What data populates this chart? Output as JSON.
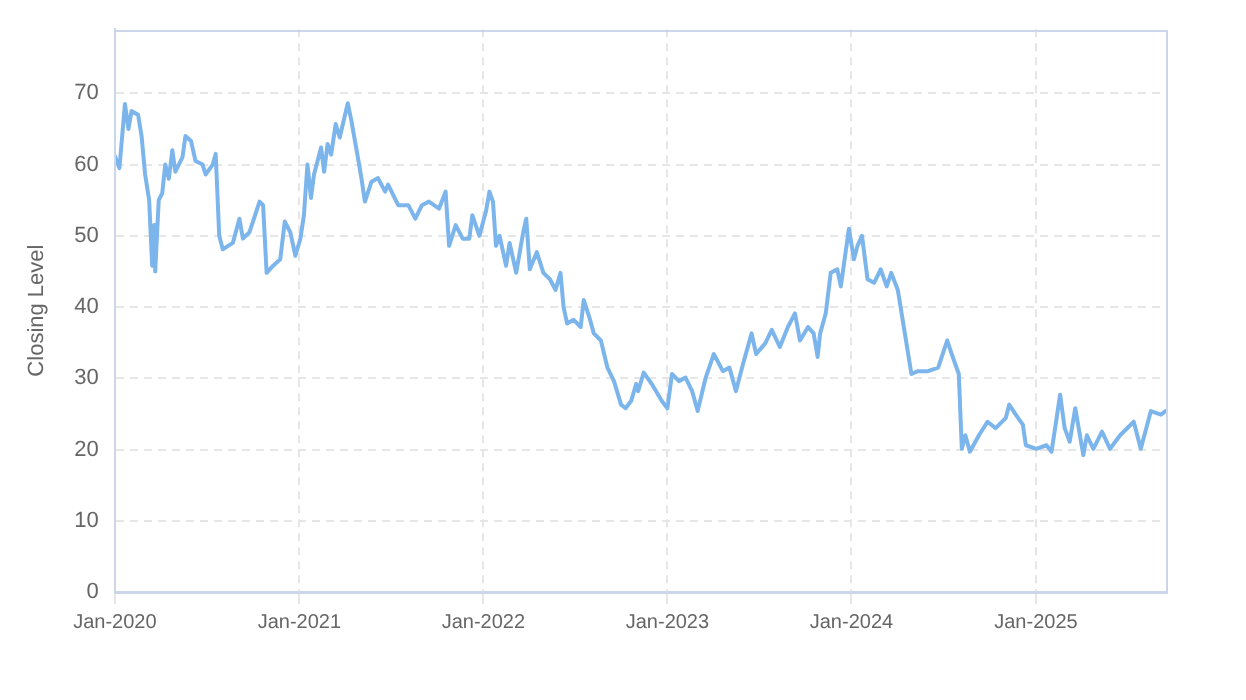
{
  "chart_data": {
    "type": "line",
    "ylabel": "Closing Level",
    "ylim": [
      0,
      79
    ],
    "yticks": [
      0,
      10,
      20,
      30,
      40,
      50,
      60,
      70
    ],
    "xlim": [
      "2020-01-01",
      "2025-09-16"
    ],
    "xticks": [
      {
        "value": "2020-01-01",
        "label": "Jan-2020"
      },
      {
        "value": "2021-01-01",
        "label": "Jan-2021"
      },
      {
        "value": "2022-01-01",
        "label": "Jan-2022"
      },
      {
        "value": "2023-01-01",
        "label": "Jan-2023"
      },
      {
        "value": "2024-01-01",
        "label": "Jan-2024"
      },
      {
        "value": "2025-01-01",
        "label": "Jan-2025"
      }
    ],
    "grid": true,
    "legend": false,
    "marker": "none",
    "series": [
      {
        "color": "#7cb5ec",
        "x": [
          "2020-01-01",
          "2020-01-10",
          "2020-01-21",
          "2020-01-28",
          "2020-02-03",
          "2020-02-16",
          "2020-02-23",
          "2020-03-01",
          "2020-03-09",
          "2020-03-15",
          "2020-03-19",
          "2020-03-21",
          "2020-03-28",
          "2020-04-04",
          "2020-04-10",
          "2020-04-17",
          "2020-04-24",
          "2020-04-30",
          "2020-05-14",
          "2020-05-20",
          "2020-05-31",
          "2020-06-09",
          "2020-06-23",
          "2020-06-29",
          "2020-07-13",
          "2020-07-19",
          "2020-07-26",
          "2020-08-02",
          "2020-08-22",
          "2020-09-04",
          "2020-09-11",
          "2020-09-24",
          "2020-10-14",
          "2020-10-21",
          "2020-10-28",
          "2020-11-10",
          "2020-11-24",
          "2020-12-03",
          "2020-12-14",
          "2020-12-24",
          "2021-01-03",
          "2021-01-10",
          "2021-01-17",
          "2021-01-24",
          "2021-01-30",
          "2021-02-13",
          "2021-02-19",
          "2021-02-26",
          "2021-03-05",
          "2021-03-14",
          "2021-03-22",
          "2021-04-07",
          "2021-04-14",
          "2021-04-27",
          "2021-05-04",
          "2021-05-11",
          "2021-05-24",
          "2021-06-06",
          "2021-06-20",
          "2021-06-26",
          "2021-07-16",
          "2021-08-05",
          "2021-08-19",
          "2021-09-01",
          "2021-09-15",
          "2021-10-05",
          "2021-10-18",
          "2021-10-25",
          "2021-11-07",
          "2021-11-21",
          "2021-12-04",
          "2021-12-10",
          "2021-12-24",
          "2022-01-06",
          "2022-01-13",
          "2022-01-20",
          "2022-01-26",
          "2022-02-02",
          "2022-02-15",
          "2022-02-22",
          "2022-03-07",
          "2022-03-21",
          "2022-03-27",
          "2022-04-03",
          "2022-04-17",
          "2022-04-30",
          "2022-05-13",
          "2022-05-24",
          "2022-06-03",
          "2022-06-09",
          "2022-06-16",
          "2022-06-29",
          "2022-07-13",
          "2022-07-19",
          "2022-07-30",
          "2022-08-08",
          "2022-08-22",
          "2022-09-04",
          "2022-09-17",
          "2022-10-01",
          "2022-10-10",
          "2022-10-21",
          "2022-10-31",
          "2022-11-04",
          "2022-11-15",
          "2022-12-01",
          "2022-12-21",
          "2023-01-01",
          "2023-01-10",
          "2023-01-24",
          "2023-02-06",
          "2023-02-19",
          "2023-03-02",
          "2023-03-18",
          "2023-04-03",
          "2023-04-21",
          "2023-05-04",
          "2023-05-17",
          "2023-05-31",
          "2023-06-17",
          "2023-06-26",
          "2023-07-14",
          "2023-07-27",
          "2023-08-12",
          "2023-08-28",
          "2023-09-11",
          "2023-09-21",
          "2023-10-07",
          "2023-10-18",
          "2023-10-26",
          "2023-10-31",
          "2023-11-11",
          "2023-11-21",
          "2023-12-04",
          "2023-12-11",
          "2023-12-27",
          "2024-01-06",
          "2024-01-13",
          "2024-01-22",
          "2024-02-02",
          "2024-02-15",
          "2024-02-28",
          "2024-03-11",
          "2024-03-20",
          "2024-04-02",
          "2024-04-16",
          "2024-04-29",
          "2024-05-12",
          "2024-06-01",
          "2024-06-21",
          "2024-07-09",
          "2024-07-18",
          "2024-08-01",
          "2024-08-07",
          "2024-08-14",
          "2024-08-23",
          "2024-09-10",
          "2024-09-27",
          "2024-10-13",
          "2024-11-02",
          "2024-11-09",
          "2024-11-22",
          "2024-12-06",
          "2024-12-12",
          "2025-01-02",
          "2025-01-22",
          "2025-02-01",
          "2025-02-18",
          "2025-02-27",
          "2025-03-09",
          "2025-03-20",
          "2025-04-05",
          "2025-04-12",
          "2025-04-25",
          "2025-05-12",
          "2025-05-28",
          "2025-06-17",
          "2025-07-14",
          "2025-07-28",
          "2025-08-17",
          "2025-09-06",
          "2025-09-15"
        ],
        "values": [
          61.2,
          59.5,
          68.5,
          65,
          67.5,
          67,
          64,
          58.6,
          55,
          45.8,
          51.5,
          45,
          55,
          56,
          60,
          58,
          62,
          59,
          61,
          64,
          63.3,
          60.5,
          60,
          58.6,
          60,
          61.5,
          50,
          48.1,
          49,
          52.4,
          49.6,
          50.5,
          54.8,
          54.3,
          44.8,
          45.8,
          46.7,
          52,
          50.5,
          47.2,
          49.6,
          52.9,
          60,
          55.3,
          58.6,
          62.4,
          59,
          62.9,
          61.4,
          65.7,
          63.8,
          68.6,
          66.2,
          61,
          58.1,
          54.8,
          57.6,
          58.1,
          56.2,
          57.2,
          54.3,
          54.3,
          52.4,
          54.3,
          54.8,
          53.8,
          56.2,
          48.6,
          51.5,
          49.6,
          49.6,
          52.9,
          50,
          53.4,
          56.2,
          54.8,
          48.6,
          50,
          45.8,
          49,
          44.8,
          50.5,
          52.4,
          45.3,
          47.7,
          44.8,
          43.9,
          42.4,
          44.8,
          40,
          37.7,
          38.2,
          37.2,
          41,
          38.6,
          36.3,
          35.3,
          31.5,
          29.6,
          26.3,
          25.8,
          26.8,
          29.2,
          28.2,
          30.8,
          29.2,
          26.8,
          25.8,
          30.6,
          29.6,
          30.1,
          28.2,
          25.4,
          30.1,
          33.4,
          31,
          31.5,
          28.2,
          32,
          36.3,
          33.4,
          34.9,
          36.8,
          34.4,
          37.2,
          39.1,
          35.3,
          37.2,
          36.3,
          33,
          36.3,
          39.1,
          44.8,
          45.3,
          42.9,
          51,
          46.7,
          48.6,
          50,
          43.9,
          43.4,
          45.3,
          42.9,
          44.8,
          42.4,
          36.3,
          30.6,
          31,
          31,
          31.5,
          35.3,
          33.4,
          30.6,
          20.1,
          22,
          19.7,
          22,
          23.9,
          23,
          24.4,
          26.3,
          24.9,
          23.5,
          20.6,
          20.1,
          20.6,
          19.7,
          27.7,
          23,
          21.1,
          25.8,
          19.2,
          22,
          20.1,
          22.5,
          20.1,
          22,
          23.9,
          20.1,
          25.4,
          24.9,
          25.4
        ]
      }
    ]
  }
}
